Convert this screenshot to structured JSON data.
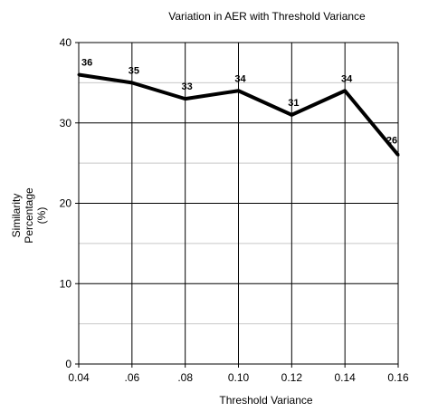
{
  "chart_data": {
    "type": "line",
    "title": "Variation in AER with Threshold Variance",
    "xlabel": "Threshold Variance",
    "ylabel": [
      "Similarity",
      "Percentage",
      "(%)"
    ],
    "x_ticks": [
      "0.04",
      ".06",
      ".08",
      "0.10",
      "0.12",
      "0.14",
      "0.16"
    ],
    "y_ticks": [
      "0",
      "10",
      "20",
      "30",
      "40"
    ],
    "ylim": [
      0,
      40
    ],
    "y_minor_gridlines": [
      5,
      15,
      25,
      35
    ],
    "grid": true,
    "series": [
      {
        "values": [
          36,
          35,
          33,
          34,
          31,
          34,
          26
        ],
        "data_labels": [
          "36",
          "35",
          "33",
          "34",
          "31",
          "34",
          "26"
        ],
        "color": "#000000"
      }
    ]
  }
}
